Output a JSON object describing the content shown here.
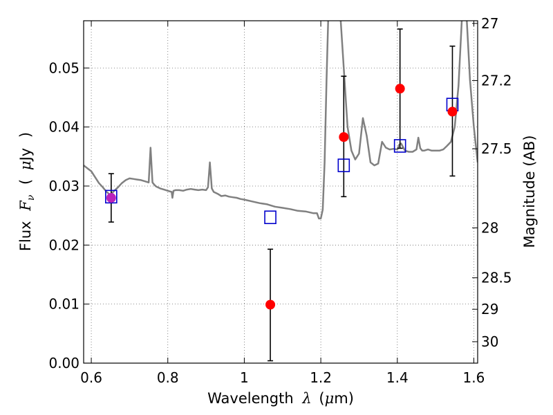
{
  "chart_data": {
    "type": "scatter",
    "title": "",
    "xlabel": {
      "prefix": "Wavelength",
      "symbol": "λ",
      "unit_open": "(",
      "unit_mu": "μ",
      "unit_rest": "m)"
    },
    "ylabel": {
      "prefix": "Flux",
      "symbol": "F",
      "subscript": "ν",
      "unit_open": "(",
      "unit_mu": "μ",
      "unit_rest": "Jy",
      "unit_close": ")"
    },
    "y2label": "Magnitude (AB)",
    "xlim": [
      0.58,
      1.61
    ],
    "ylim": [
      0.0,
      0.058
    ],
    "grid": true,
    "x_ticks": [
      {
        "value": 0.6,
        "label": "0.6"
      },
      {
        "value": 0.8,
        "label": "0.8"
      },
      {
        "value": 1.0,
        "label": "1"
      },
      {
        "value": 1.2,
        "label": "1.2"
      },
      {
        "value": 1.4,
        "label": "1.4"
      },
      {
        "value": 1.6,
        "label": "1.6"
      }
    ],
    "y_ticks": [
      {
        "value": 0.0,
        "label": "0.00"
      },
      {
        "value": 0.01,
        "label": "0.01"
      },
      {
        "value": 0.02,
        "label": "0.02"
      },
      {
        "value": 0.03,
        "label": "0.03"
      },
      {
        "value": 0.04,
        "label": "0.04"
      },
      {
        "value": 0.05,
        "label": "0.05"
      }
    ],
    "y2_ticks": [
      {
        "value": 27.0,
        "label": "27"
      },
      {
        "value": 27.2,
        "label": "27.2"
      },
      {
        "value": 27.5,
        "label": "27.5"
      },
      {
        "value": 28.0,
        "label": "28"
      },
      {
        "value": 28.5,
        "label": "28.5"
      },
      {
        "value": 29.0,
        "label": "29"
      },
      {
        "value": 30.0,
        "label": "30"
      }
    ],
    "colors": {
      "sed_model": "#808080",
      "observed": "#ff0000",
      "model_photometry": "#0000cc",
      "errorbar": "#000000",
      "grid": "#666666",
      "overlap": "#bb22bb"
    },
    "series": [
      {
        "kind": "line",
        "x": [
          0.58,
          0.59,
          0.6,
          0.61,
          0.62,
          0.63,
          0.64,
          0.65,
          0.66,
          0.67,
          0.68,
          0.69,
          0.7,
          0.71,
          0.72,
          0.73,
          0.74,
          0.75,
          0.755,
          0.76,
          0.765,
          0.77,
          0.78,
          0.79,
          0.8,
          0.81,
          0.812,
          0.815,
          0.82,
          0.83,
          0.84,
          0.85,
          0.86,
          0.87,
          0.88,
          0.89,
          0.9,
          0.905,
          0.91,
          0.915,
          0.92,
          0.93,
          0.94,
          0.95,
          0.96,
          0.97,
          0.98,
          0.99,
          1.0,
          1.02,
          1.04,
          1.06,
          1.08,
          1.1,
          1.12,
          1.14,
          1.16,
          1.18,
          1.19,
          1.195,
          1.2,
          1.205,
          1.21,
          1.215,
          1.22,
          1.23,
          1.24,
          1.25,
          1.26,
          1.27,
          1.28,
          1.29,
          1.3,
          1.31,
          1.32,
          1.33,
          1.34,
          1.35,
          1.36,
          1.37,
          1.38,
          1.39,
          1.4,
          1.405,
          1.41,
          1.42,
          1.43,
          1.44,
          1.45,
          1.455,
          1.46,
          1.465,
          1.47,
          1.48,
          1.49,
          1.5,
          1.51,
          1.52,
          1.53,
          1.54,
          1.55,
          1.56,
          1.57,
          1.58,
          1.59,
          1.6,
          1.61
        ],
        "y": [
          0.0335,
          0.033,
          0.0325,
          0.0315,
          0.0305,
          0.0298,
          0.029,
          0.0285,
          0.0292,
          0.0298,
          0.0305,
          0.031,
          0.0313,
          0.0312,
          0.0311,
          0.031,
          0.0308,
          0.0306,
          0.0365,
          0.0306,
          0.0302,
          0.0299,
          0.0296,
          0.0294,
          0.0292,
          0.029,
          0.028,
          0.0292,
          0.0293,
          0.0293,
          0.0292,
          0.0294,
          0.0295,
          0.0294,
          0.0293,
          0.0294,
          0.0293,
          0.0298,
          0.034,
          0.0296,
          0.029,
          0.0287,
          0.0283,
          0.0284,
          0.0282,
          0.0281,
          0.028,
          0.0278,
          0.0277,
          0.0274,
          0.0271,
          0.0269,
          0.0265,
          0.0263,
          0.0261,
          0.0258,
          0.0257,
          0.0254,
          0.0254,
          0.0245,
          0.0245,
          0.026,
          0.034,
          0.048,
          0.06,
          0.06,
          0.06,
          0.06,
          0.05,
          0.04,
          0.036,
          0.0345,
          0.0355,
          0.0415,
          0.0385,
          0.034,
          0.0335,
          0.0338,
          0.0375,
          0.0365,
          0.0362,
          0.0363,
          0.0362,
          0.037,
          0.0372,
          0.036,
          0.0358,
          0.0358,
          0.0362,
          0.0382,
          0.0364,
          0.036,
          0.036,
          0.0362,
          0.036,
          0.036,
          0.036,
          0.0362,
          0.0368,
          0.0375,
          0.04,
          0.047,
          0.06,
          0.06,
          0.048,
          0.04,
          0.034
        ]
      },
      {
        "kind": "model_photometry",
        "x": [
          0.652,
          1.068,
          1.26,
          1.407,
          1.544
        ],
        "y": [
          0.0282,
          0.0247,
          0.0335,
          0.0368,
          0.0438
        ]
      },
      {
        "kind": "observed",
        "x": [
          0.652,
          1.068,
          1.26,
          1.407,
          1.544
        ],
        "y": [
          0.028,
          0.0099,
          0.0383,
          0.0465,
          0.0426
        ],
        "yerr_low": [
          0.0239,
          0.0004,
          0.0282,
          0.0364,
          0.0317
        ],
        "yerr_high": [
          0.0321,
          0.0193,
          0.0486,
          0.0566,
          0.0537
        ]
      }
    ]
  }
}
